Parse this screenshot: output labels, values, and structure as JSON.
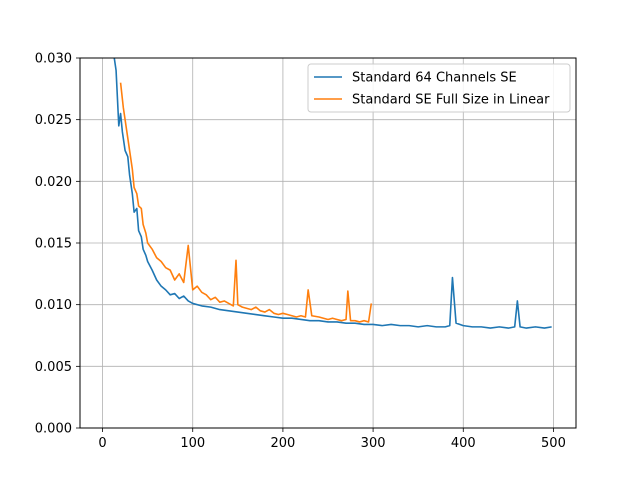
{
  "chart_data": {
    "type": "line",
    "title": "",
    "xlabel": "",
    "ylabel": "",
    "xlim": [
      -25,
      525
    ],
    "ylim": [
      0,
      0.03
    ],
    "xticks": [
      0,
      100,
      200,
      300,
      400,
      500
    ],
    "xtick_labels": [
      "0",
      "100",
      "200",
      "300",
      "400",
      "500"
    ],
    "yticks": [
      0,
      0.005,
      0.01,
      0.015,
      0.02,
      0.025,
      0.03
    ],
    "ytick_labels": [
      "0.000",
      "0.005",
      "0.010",
      "0.015",
      "0.020",
      "0.025",
      "0.030"
    ],
    "grid": true,
    "legend_position": "upper right",
    "series": [
      {
        "name": "Standard 64 Channels SE",
        "color": "#1f77b4",
        "x": [
          12,
          15,
          18,
          20,
          22,
          25,
          28,
          30,
          33,
          35,
          38,
          40,
          43,
          45,
          48,
          50,
          55,
          60,
          65,
          70,
          75,
          80,
          85,
          90,
          95,
          100,
          110,
          120,
          130,
          140,
          150,
          160,
          170,
          180,
          190,
          200,
          210,
          220,
          230,
          240,
          250,
          260,
          270,
          280,
          290,
          300,
          310,
          320,
          330,
          340,
          350,
          360,
          370,
          380,
          385,
          388,
          392,
          400,
          410,
          420,
          430,
          440,
          450,
          457,
          460,
          463,
          470,
          480,
          490,
          498
        ],
        "y": [
          0.0305,
          0.029,
          0.0245,
          0.0255,
          0.024,
          0.0225,
          0.022,
          0.0205,
          0.019,
          0.0175,
          0.0178,
          0.016,
          0.0155,
          0.0145,
          0.014,
          0.0135,
          0.0128,
          0.012,
          0.0115,
          0.0112,
          0.0108,
          0.0109,
          0.0105,
          0.0107,
          0.0103,
          0.0101,
          0.0099,
          0.0098,
          0.0096,
          0.0095,
          0.0094,
          0.0093,
          0.0092,
          0.0091,
          0.009,
          0.0089,
          0.0089,
          0.0088,
          0.0087,
          0.0087,
          0.0086,
          0.0086,
          0.0085,
          0.0085,
          0.0084,
          0.0084,
          0.0083,
          0.0084,
          0.0083,
          0.0083,
          0.0082,
          0.0083,
          0.0082,
          0.0082,
          0.0083,
          0.0122,
          0.0085,
          0.0083,
          0.0082,
          0.0082,
          0.0081,
          0.0082,
          0.0081,
          0.0082,
          0.0103,
          0.0082,
          0.0081,
          0.0082,
          0.0081,
          0.0082
        ]
      },
      {
        "name": "Standard SE Full Size in Linear",
        "color": "#ff7f0e",
        "x": [
          20,
          23,
          25,
          28,
          30,
          33,
          35,
          38,
          40,
          43,
          45,
          48,
          50,
          55,
          60,
          65,
          70,
          75,
          80,
          85,
          90,
          95,
          100,
          105,
          110,
          115,
          120,
          125,
          130,
          135,
          140,
          145,
          148,
          150,
          155,
          160,
          165,
          170,
          175,
          180,
          185,
          190,
          195,
          200,
          205,
          210,
          215,
          220,
          225,
          228,
          232,
          240,
          245,
          250,
          255,
          260,
          265,
          270,
          272,
          275,
          280,
          285,
          290,
          295,
          298
        ],
        "y": [
          0.028,
          0.026,
          0.025,
          0.0235,
          0.0225,
          0.021,
          0.0195,
          0.019,
          0.018,
          0.0178,
          0.0165,
          0.0158,
          0.015,
          0.0145,
          0.0138,
          0.0135,
          0.013,
          0.0128,
          0.012,
          0.0125,
          0.0118,
          0.0148,
          0.0112,
          0.0115,
          0.011,
          0.0108,
          0.0104,
          0.0106,
          0.0102,
          0.0103,
          0.0101,
          0.0099,
          0.0136,
          0.01,
          0.0098,
          0.0097,
          0.0096,
          0.0098,
          0.0095,
          0.0094,
          0.0096,
          0.0093,
          0.0092,
          0.0093,
          0.0092,
          0.0091,
          0.009,
          0.0091,
          0.009,
          0.0112,
          0.0091,
          0.009,
          0.0089,
          0.0088,
          0.0089,
          0.0088,
          0.0087,
          0.0088,
          0.0111,
          0.0087,
          0.0087,
          0.0086,
          0.0087,
          0.0086,
          0.0101
        ]
      }
    ]
  }
}
